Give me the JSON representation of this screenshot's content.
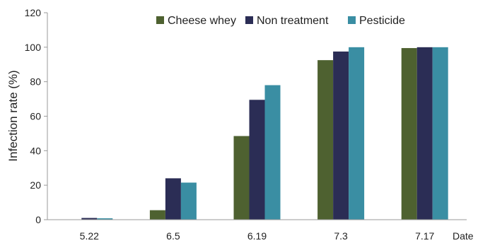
{
  "chart_data": {
    "type": "bar",
    "categories": [
      "5.22",
      "6.5",
      "6.19",
      "7.3",
      "7.17"
    ],
    "series": [
      {
        "name": "Cheese whey",
        "color": "#4e6130",
        "values": [
          0,
          5.5,
          48.5,
          92.5,
          99.5
        ]
      },
      {
        "name": "Non treatment",
        "color": "#2b2d55",
        "values": [
          1.0,
          24.0,
          69.5,
          97.5,
          100
        ]
      },
      {
        "name": "Pesticide",
        "color": "#3a8ea3",
        "values": [
          0.8,
          21.5,
          78.0,
          100,
          100
        ]
      }
    ],
    "title": "",
    "xlabel": "Date",
    "ylabel": "Infection rate (%)",
    "ylim": [
      0,
      120
    ],
    "yticks": [
      "0",
      "20",
      "40",
      "60",
      "80",
      "100",
      "120"
    ],
    "grid": false,
    "legend_position": "top-right"
  }
}
